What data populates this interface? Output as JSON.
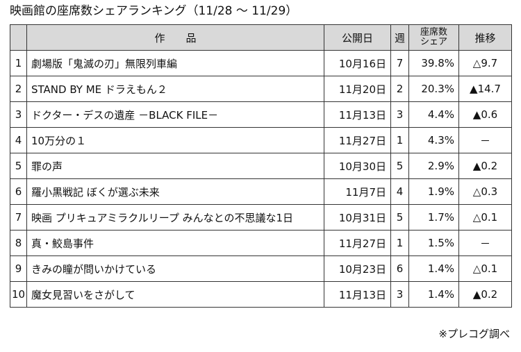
{
  "title": "映画館の座席数シェアランキング（11/28 ～ 11/29）",
  "headers": {
    "rank": "",
    "title": "作　　品",
    "release_date": "公開日",
    "week": "週",
    "share_line1": "座席数",
    "share_line2": "シェア",
    "trend": "推移"
  },
  "rows": [
    {
      "rank": "1",
      "title": "劇場版「鬼滅の刃」無限列車編",
      "release_date": "10月16日",
      "week": "7",
      "share": "39.8%",
      "trend": "△9.7"
    },
    {
      "rank": "2",
      "title": "STAND BY ME ドラえもん２",
      "release_date": "11月20日",
      "week": "2",
      "share": "20.3%",
      "trend": "▲14.7"
    },
    {
      "rank": "3",
      "title": "ドクター・デスの遺産 －BLACK FILE－",
      "release_date": "11月13日",
      "week": "3",
      "share": "4.4%",
      "trend": "▲0.6"
    },
    {
      "rank": "4",
      "title": "10万分の１",
      "release_date": "11月27日",
      "week": "1",
      "share": "4.3%",
      "trend": "－"
    },
    {
      "rank": "5",
      "title": "罪の声",
      "release_date": "10月30日",
      "week": "5",
      "share": "2.9%",
      "trend": "▲0.2"
    },
    {
      "rank": "6",
      "title": "羅小黒戦記 ぼくが選ぶ未来",
      "release_date": "11月7日",
      "week": "4",
      "share": "1.9%",
      "trend": "△0.3"
    },
    {
      "rank": "7",
      "title": "映画 プリキュアミラクルリープ みんなとの不思議な1日",
      "release_date": "10月31日",
      "week": "5",
      "share": "1.7%",
      "trend": "△0.1"
    },
    {
      "rank": "8",
      "title": "真・鮫島事件",
      "release_date": "11月27日",
      "week": "1",
      "share": "1.5%",
      "trend": "－"
    },
    {
      "rank": "9",
      "title": "きみの瞳が問いかけている",
      "release_date": "10月23日",
      "week": "6",
      "share": "1.4%",
      "trend": "△0.1"
    },
    {
      "rank": "10",
      "title": "魔女見習いをさがして",
      "release_date": "11月13日",
      "week": "3",
      "share": "1.4%",
      "trend": "▲0.2"
    }
  ],
  "source_note": "※プレコグ調べ"
}
